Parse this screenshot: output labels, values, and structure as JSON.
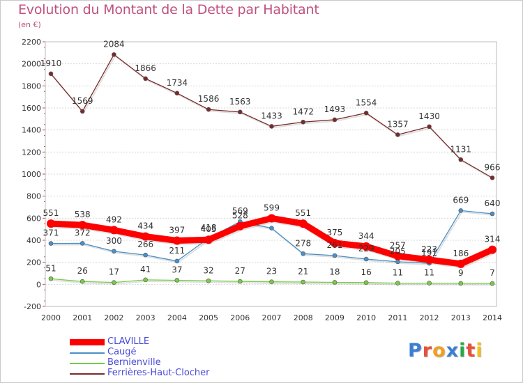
{
  "chart_data": {
    "type": "line",
    "title": "Evolution du Montant de la Dette par Habitant",
    "subtitle": "(en €)",
    "x": [
      "2000",
      "2001",
      "2002",
      "2003",
      "2004",
      "2005",
      "2006",
      "2007",
      "2008",
      "2009",
      "2010",
      "2011",
      "2012",
      "2013",
      "2014"
    ],
    "yticks": [
      "-200",
      "0",
      "200",
      "400",
      "600",
      "800",
      "1000",
      "1200",
      "1400",
      "1600",
      "1800",
      "2000",
      "2200"
    ],
    "ylim": [
      -200,
      2200
    ],
    "grid": true,
    "legend_position": "bottom-left",
    "series": [
      {
        "name": "CLAVILLE",
        "color": "#ff0000",
        "values": [
          551,
          538,
          492,
          434,
          397,
          405,
          528,
          599,
          551,
          375,
          344,
          257,
          223,
          186,
          314
        ],
        "labels": [
          "551",
          "538",
          "492",
          "434",
          "397",
          "405",
          "528",
          "599",
          "551",
          "375",
          "344",
          "257",
          "223",
          "186",
          "314"
        ]
      },
      {
        "name": "Caugé",
        "color": "#4a90c8",
        "values": [
          371,
          372,
          300,
          266,
          211,
          418,
          569,
          510,
          278,
          261,
          229,
          205,
          191,
          669,
          640
        ],
        "labels": [
          "371",
          "372",
          "300",
          "266",
          "211",
          "418",
          "569",
          "",
          "278",
          "261",
          "229",
          "205",
          "191",
          "669",
          "640"
        ]
      },
      {
        "name": "Bernienville",
        "color": "#77cc44",
        "values": [
          51,
          26,
          17,
          41,
          37,
          32,
          27,
          23,
          21,
          18,
          16,
          11,
          11,
          9,
          7
        ],
        "labels": [
          "51",
          "26",
          "17",
          "41",
          "37",
          "32",
          "27",
          "23",
          "21",
          "18",
          "16",
          "11",
          "11",
          "9",
          "7"
        ]
      },
      {
        "name": "Ferrières-Haut-Clocher",
        "color": "#7a2a2a",
        "values": [
          1910,
          1569,
          2084,
          1866,
          1734,
          1586,
          1563,
          1433,
          1472,
          1493,
          1554,
          1357,
          1430,
          1131,
          966
        ],
        "labels": [
          "1910",
          "1569",
          "2084",
          "1866",
          "1734",
          "1586",
          "1563",
          "1433",
          "1472",
          "1493",
          "1554",
          "1357",
          "1430",
          "1131",
          "966"
        ]
      }
    ]
  },
  "brand": {
    "letters": [
      {
        "ch": "P",
        "color": "#3b7fd4"
      },
      {
        "ch": "r",
        "color": "#e8503a"
      },
      {
        "ch": "o",
        "color": "#f0a020"
      },
      {
        "ch": "x",
        "color": "#3b7fd4"
      },
      {
        "ch": "i",
        "color": "#2aa84a"
      },
      {
        "ch": "t",
        "color": "#e8503a"
      },
      {
        "ch": "i",
        "color": "#f0c020"
      }
    ]
  }
}
